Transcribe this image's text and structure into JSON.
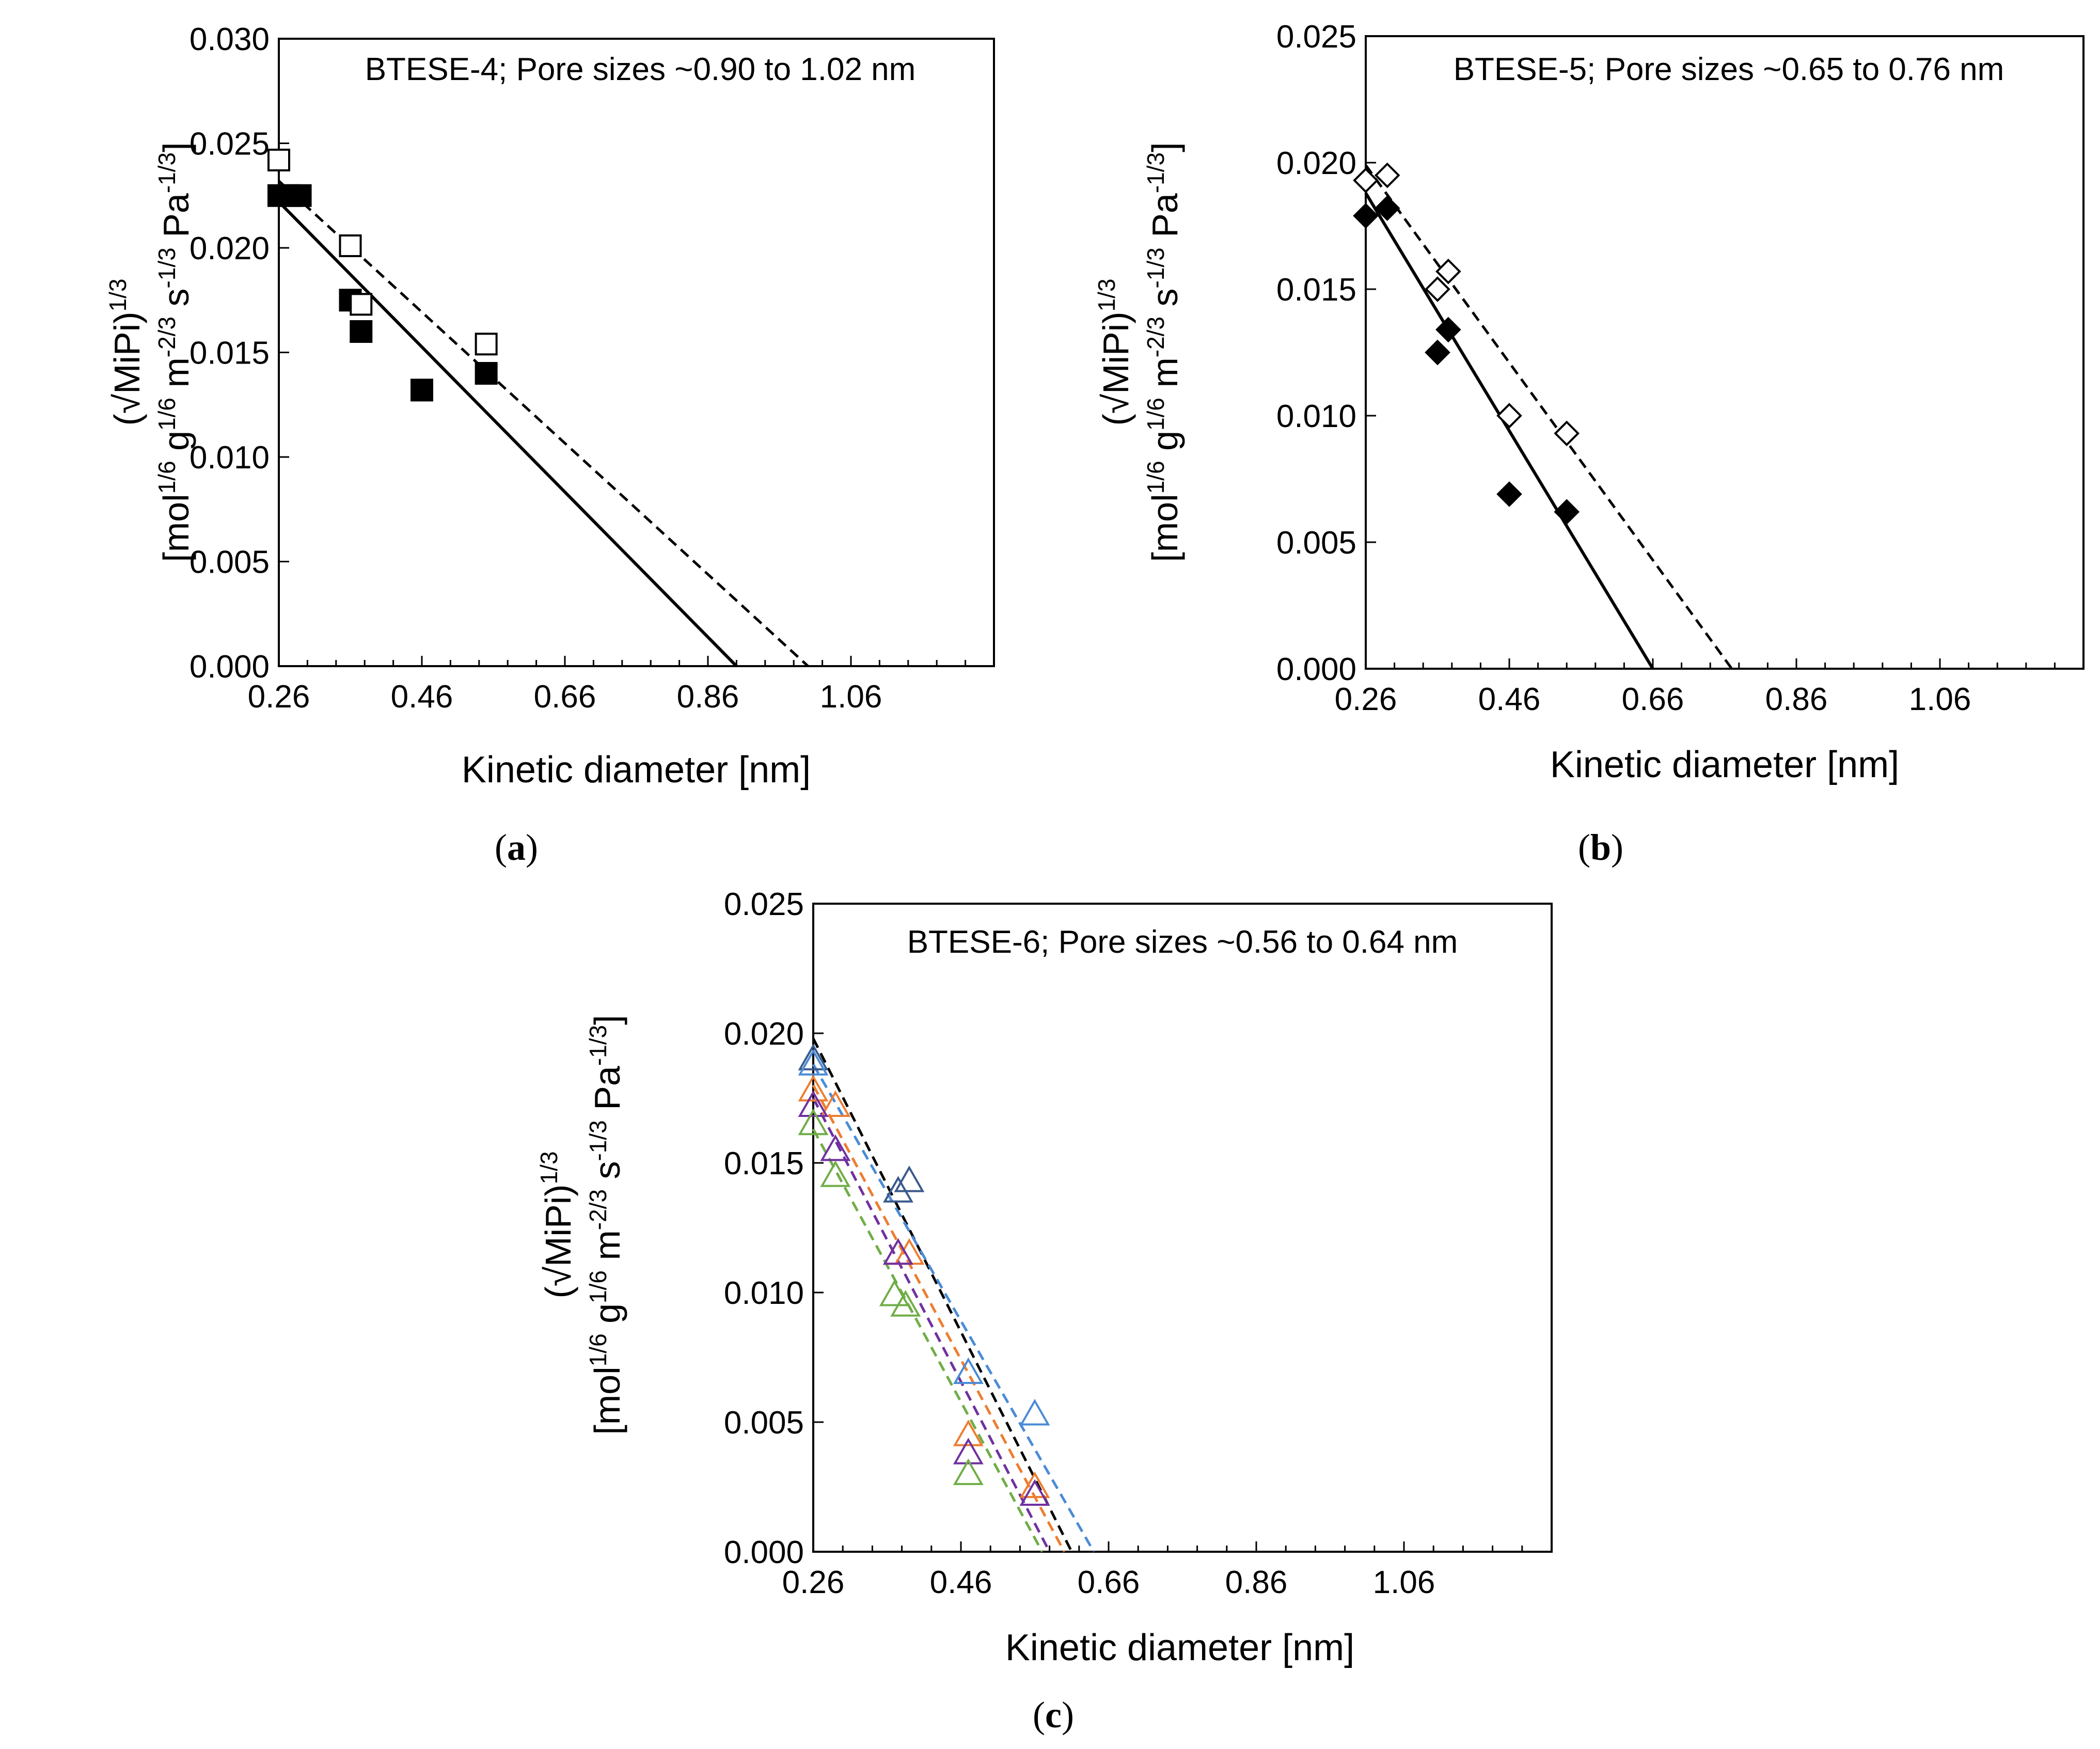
{
  "chart_data": [
    {
      "panel": "(a)",
      "caption_open": "(",
      "caption_letter": "a",
      "caption_close": ")",
      "type": "scatter",
      "annotation": "BTESE-4; Pore sizes ~0.90 to 1.02 nm",
      "xlabel": "Kinetic diameter [nm]",
      "ylabel_line1": "(√MiPi)^1/3",
      "ylabel_line2": "[mol^1/6 g^1/6 m^-2/3 s^-1/3 Pa^-1/3]",
      "xlim": [
        0.26,
        1.26
      ],
      "ylim": [
        0,
        0.03
      ],
      "x_tick_labels": [
        "0.26",
        "0.46",
        "0.66",
        "0.86",
        "1.06"
      ],
      "x_tick_values": [
        0.26,
        0.46,
        0.66,
        0.86,
        1.06
      ],
      "y_tick_labels": [
        "0.000",
        "0.005",
        "0.010",
        "0.015",
        "0.020",
        "0.025",
        "0.030"
      ],
      "y_tick_values": [
        0,
        0.005,
        0.01,
        0.015,
        0.02,
        0.025,
        0.03
      ],
      "series": [
        {
          "name": "filled squares",
          "marker": "square",
          "fill": "#000000",
          "stroke": "#000000",
          "x": [
            0.26,
            0.275,
            0.29,
            0.36,
            0.375,
            0.46,
            0.55
          ],
          "y": [
            0.0225,
            0.0225,
            0.0225,
            0.0175,
            0.016,
            0.0132,
            0.014
          ]
        },
        {
          "name": "open squares",
          "marker": "square",
          "fill": "none",
          "stroke": "#000000",
          "x": [
            0.26,
            0.36,
            0.375,
            0.55
          ],
          "y": [
            0.0242,
            0.0201,
            0.0173,
            0.0154
          ]
        }
      ],
      "fit_lines": [
        {
          "style": "solid",
          "color": "#000000",
          "x": [
            0.26,
            0.9
          ],
          "y": [
            0.0222,
            0.0
          ]
        },
        {
          "style": "dashed",
          "color": "#000000",
          "x": [
            0.26,
            1.0
          ],
          "y": [
            0.0232,
            0.0
          ]
        }
      ]
    },
    {
      "panel": "(b)",
      "caption_open": "(",
      "caption_letter": "b",
      "caption_close": ")",
      "type": "scatter",
      "annotation": "BTESE-5; Pore sizes ~0.65 to 0.76 nm",
      "xlabel": "Kinetic diameter [nm]",
      "ylabel_line1": "(√MiPi)^1/3",
      "ylabel_line2": "[mol^1/6 g^1/6 m^-2/3 s^-1/3 Pa^-1/3]",
      "xlim": [
        0.26,
        1.26
      ],
      "ylim": [
        0,
        0.025
      ],
      "x_tick_labels": [
        "0.26",
        "0.46",
        "0.66",
        "0.86",
        "1.06"
      ],
      "x_tick_values": [
        0.26,
        0.46,
        0.66,
        0.86,
        1.06
      ],
      "y_tick_labels": [
        "0.000",
        "0.005",
        "0.010",
        "0.015",
        "0.020",
        "0.025"
      ],
      "y_tick_values": [
        0,
        0.005,
        0.01,
        0.015,
        0.02,
        0.025
      ],
      "series": [
        {
          "name": "filled diamonds",
          "marker": "diamond",
          "fill": "#000000",
          "stroke": "#000000",
          "x": [
            0.26,
            0.29,
            0.36,
            0.375,
            0.46,
            0.54
          ],
          "y": [
            0.0179,
            0.0182,
            0.0125,
            0.0134,
            0.0069,
            0.0062
          ]
        },
        {
          "name": "open diamonds",
          "marker": "diamond",
          "fill": "none",
          "stroke": "#000000",
          "x": [
            0.26,
            0.29,
            0.36,
            0.375,
            0.46,
            0.54
          ],
          "y": [
            0.0193,
            0.0195,
            0.015,
            0.0157,
            0.01,
            0.0093
          ]
        }
      ],
      "fit_lines": [
        {
          "style": "solid",
          "color": "#000000",
          "x": [
            0.26,
            0.66
          ],
          "y": [
            0.0188,
            0.0
          ]
        },
        {
          "style": "dashed",
          "color": "#000000",
          "x": [
            0.26,
            0.77
          ],
          "y": [
            0.0199,
            0.0
          ]
        }
      ]
    },
    {
      "panel": "(c)",
      "caption_open": "(",
      "caption_letter": "c",
      "caption_close": ")",
      "type": "scatter",
      "annotation": "BTESE-6; Pore sizes ~0.56 to 0.64 nm",
      "xlabel": "Kinetic diameter [nm]",
      "ylabel_line1": "(√MiPi)^1/3",
      "ylabel_line2": "[mol^1/6 g^1/6 m^-2/3 s^-1/3 Pa^-1/3]",
      "xlim": [
        0.26,
        1.26
      ],
      "ylim": [
        0,
        0.025
      ],
      "x_tick_labels": [
        "0.26",
        "0.46",
        "0.66",
        "0.86",
        "1.06"
      ],
      "x_tick_values": [
        0.26,
        0.46,
        0.66,
        0.86,
        1.06
      ],
      "y_tick_labels": [
        "0.000",
        "0.005",
        "0.010",
        "0.015",
        "0.020",
        "0.025"
      ],
      "y_tick_values": [
        0,
        0.005,
        0.01,
        0.015,
        0.02,
        0.025
      ],
      "series": [
        {
          "name": "dark blue triangles",
          "marker": "triangle",
          "fill": "none",
          "stroke": "#3a5a8c",
          "x": [
            0.26,
            0.375,
            0.39
          ],
          "y": [
            0.019,
            0.0139,
            0.0143
          ]
        },
        {
          "name": "light blue triangles",
          "marker": "triangle",
          "fill": "none",
          "stroke": "#4a8bd6",
          "x": [
            0.26,
            0.47,
            0.56
          ],
          "y": [
            0.0188,
            0.0069,
            0.0053
          ]
        },
        {
          "name": "orange triangles",
          "marker": "triangle",
          "fill": "none",
          "stroke": "#ed7d31",
          "x": [
            0.26,
            0.29,
            0.375,
            0.39,
            0.47,
            0.56
          ],
          "y": [
            0.0178,
            0.0172,
            0.0115,
            0.0115,
            0.0045,
            0.0025
          ]
        },
        {
          "name": "purple triangles",
          "marker": "triangle",
          "fill": "none",
          "stroke": "#7030a0",
          "x": [
            0.26,
            0.29,
            0.375,
            0.47,
            0.56
          ],
          "y": [
            0.0172,
            0.0155,
            0.0115,
            0.0038,
            0.0022
          ]
        },
        {
          "name": "green triangles",
          "marker": "triangle",
          "fill": "none",
          "stroke": "#70ad47",
          "x": [
            0.26,
            0.29,
            0.37,
            0.385,
            0.47
          ],
          "y": [
            0.0165,
            0.0145,
            0.0099,
            0.0095,
            0.003
          ]
        }
      ],
      "fit_lines": [
        {
          "style": "dashed",
          "color": "#000000",
          "x": [
            0.26,
            0.61
          ],
          "y": [
            0.0198,
            0.0
          ]
        },
        {
          "style": "dashed",
          "color": "#4a8bd6",
          "x": [
            0.26,
            0.64
          ],
          "y": [
            0.0188,
            0.0
          ]
        },
        {
          "style": "dashed",
          "color": "#ed7d31",
          "x": [
            0.26,
            0.6
          ],
          "y": [
            0.018,
            0.0
          ]
        },
        {
          "style": "dashed",
          "color": "#7030a0",
          "x": [
            0.26,
            0.58
          ],
          "y": [
            0.0175,
            0.0
          ]
        },
        {
          "style": "dashed",
          "color": "#70ad47",
          "x": [
            0.26,
            0.57
          ],
          "y": [
            0.0163,
            0.0
          ]
        }
      ]
    }
  ]
}
